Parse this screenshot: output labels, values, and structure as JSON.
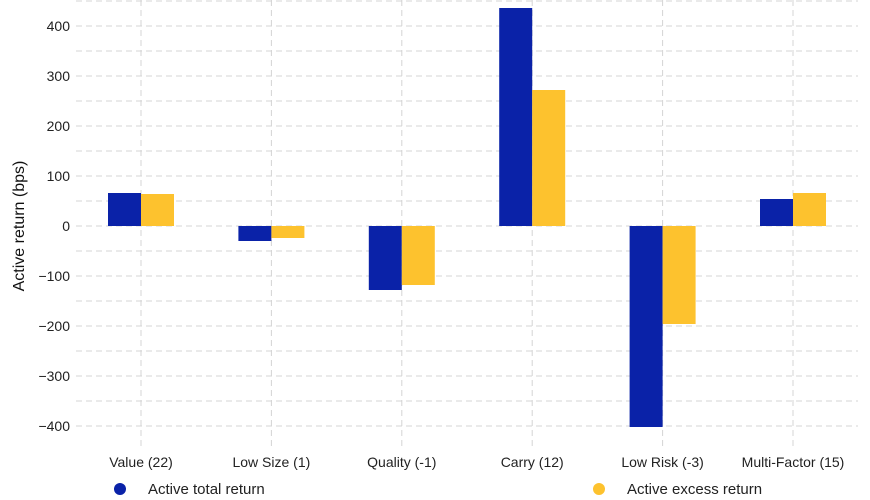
{
  "chart_data": {
    "type": "bar",
    "title": "",
    "xlabel": "",
    "ylabel": "Active return (bps)",
    "ylim": [
      -450,
      450
    ],
    "yticks": [
      400,
      300,
      200,
      100,
      0,
      -100,
      -200,
      -300,
      -400
    ],
    "ytick_labels": [
      "400",
      "300",
      "200",
      "100",
      "0",
      "−100",
      "−200",
      "−300",
      "−400"
    ],
    "grid": true,
    "legend_position": "bottom",
    "categories": [
      "Value (22)",
      "Low Size (1)",
      "Quality (-1)",
      "Carry (12)",
      "Low Risk (-3)",
      "Multi-Factor (15)"
    ],
    "series": [
      {
        "name": "Active total return",
        "color": "#0a22a8",
        "values": [
          66,
          -30,
          -128,
          436,
          -402,
          54
        ]
      },
      {
        "name": "Active excess return",
        "color": "#fdc22e",
        "values": [
          64,
          -24,
          -118,
          272,
          -196,
          66
        ]
      }
    ]
  }
}
